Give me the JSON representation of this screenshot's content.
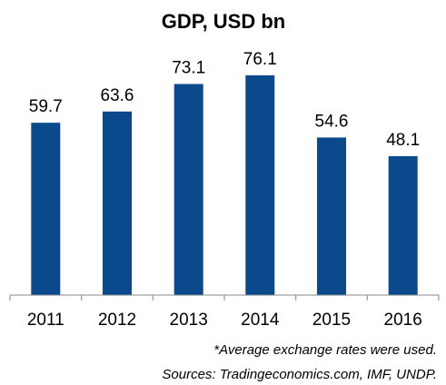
{
  "chart_data": {
    "type": "bar",
    "title": "GDP, USD bn",
    "categories": [
      "2011",
      "2012",
      "2013",
      "2014",
      "2015",
      "2016"
    ],
    "values": [
      59.7,
      63.6,
      73.1,
      76.1,
      54.6,
      48.1
    ],
    "value_labels": [
      "59.7",
      "63.6",
      "73.1",
      "76.1",
      "54.6",
      "48.1"
    ],
    "xlabel": "",
    "ylabel": "",
    "ylim": [
      0,
      76.1
    ],
    "grid": false,
    "bar_color": "#0A4A8C",
    "footnotes": [
      "*Average exchange rates were used.",
      "Sources: Tradingeconomics.com, IMF, UNDP."
    ]
  }
}
